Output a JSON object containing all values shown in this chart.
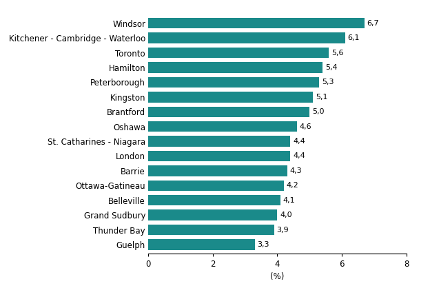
{
  "categories": [
    "Windsor",
    "Kitchener - Cambridge - Waterloo",
    "Toronto",
    "Hamilton",
    "Peterborough",
    "Kingston",
    "Brantford",
    "Oshawa",
    "St. Catharines - Niagara",
    "London",
    "Barrie",
    "Ottawa-Gatineau",
    "Belleville",
    "Grand Sudbury",
    "Thunder Bay",
    "Guelph"
  ],
  "values": [
    6.7,
    6.1,
    5.6,
    5.4,
    5.3,
    5.1,
    5.0,
    4.6,
    4.4,
    4.4,
    4.3,
    4.2,
    4.1,
    4.0,
    3.9,
    3.3
  ],
  "labels": [
    "6,7",
    "6,1",
    "5,6",
    "5,4",
    "5,3",
    "5,1",
    "5,0",
    "4,6",
    "4,4",
    "4,4",
    "4,3",
    "4,2",
    "4,1",
    "4,0",
    "3,9",
    "3,3"
  ],
  "bar_color": "#1a8a8a",
  "xlabel": "(%)",
  "xlim": [
    0,
    8
  ],
  "xticks": [
    0,
    2,
    4,
    6,
    8
  ],
  "background_color": "#ffffff",
  "label_fontsize": 8,
  "tick_fontsize": 8.5,
  "bar_height": 0.72
}
